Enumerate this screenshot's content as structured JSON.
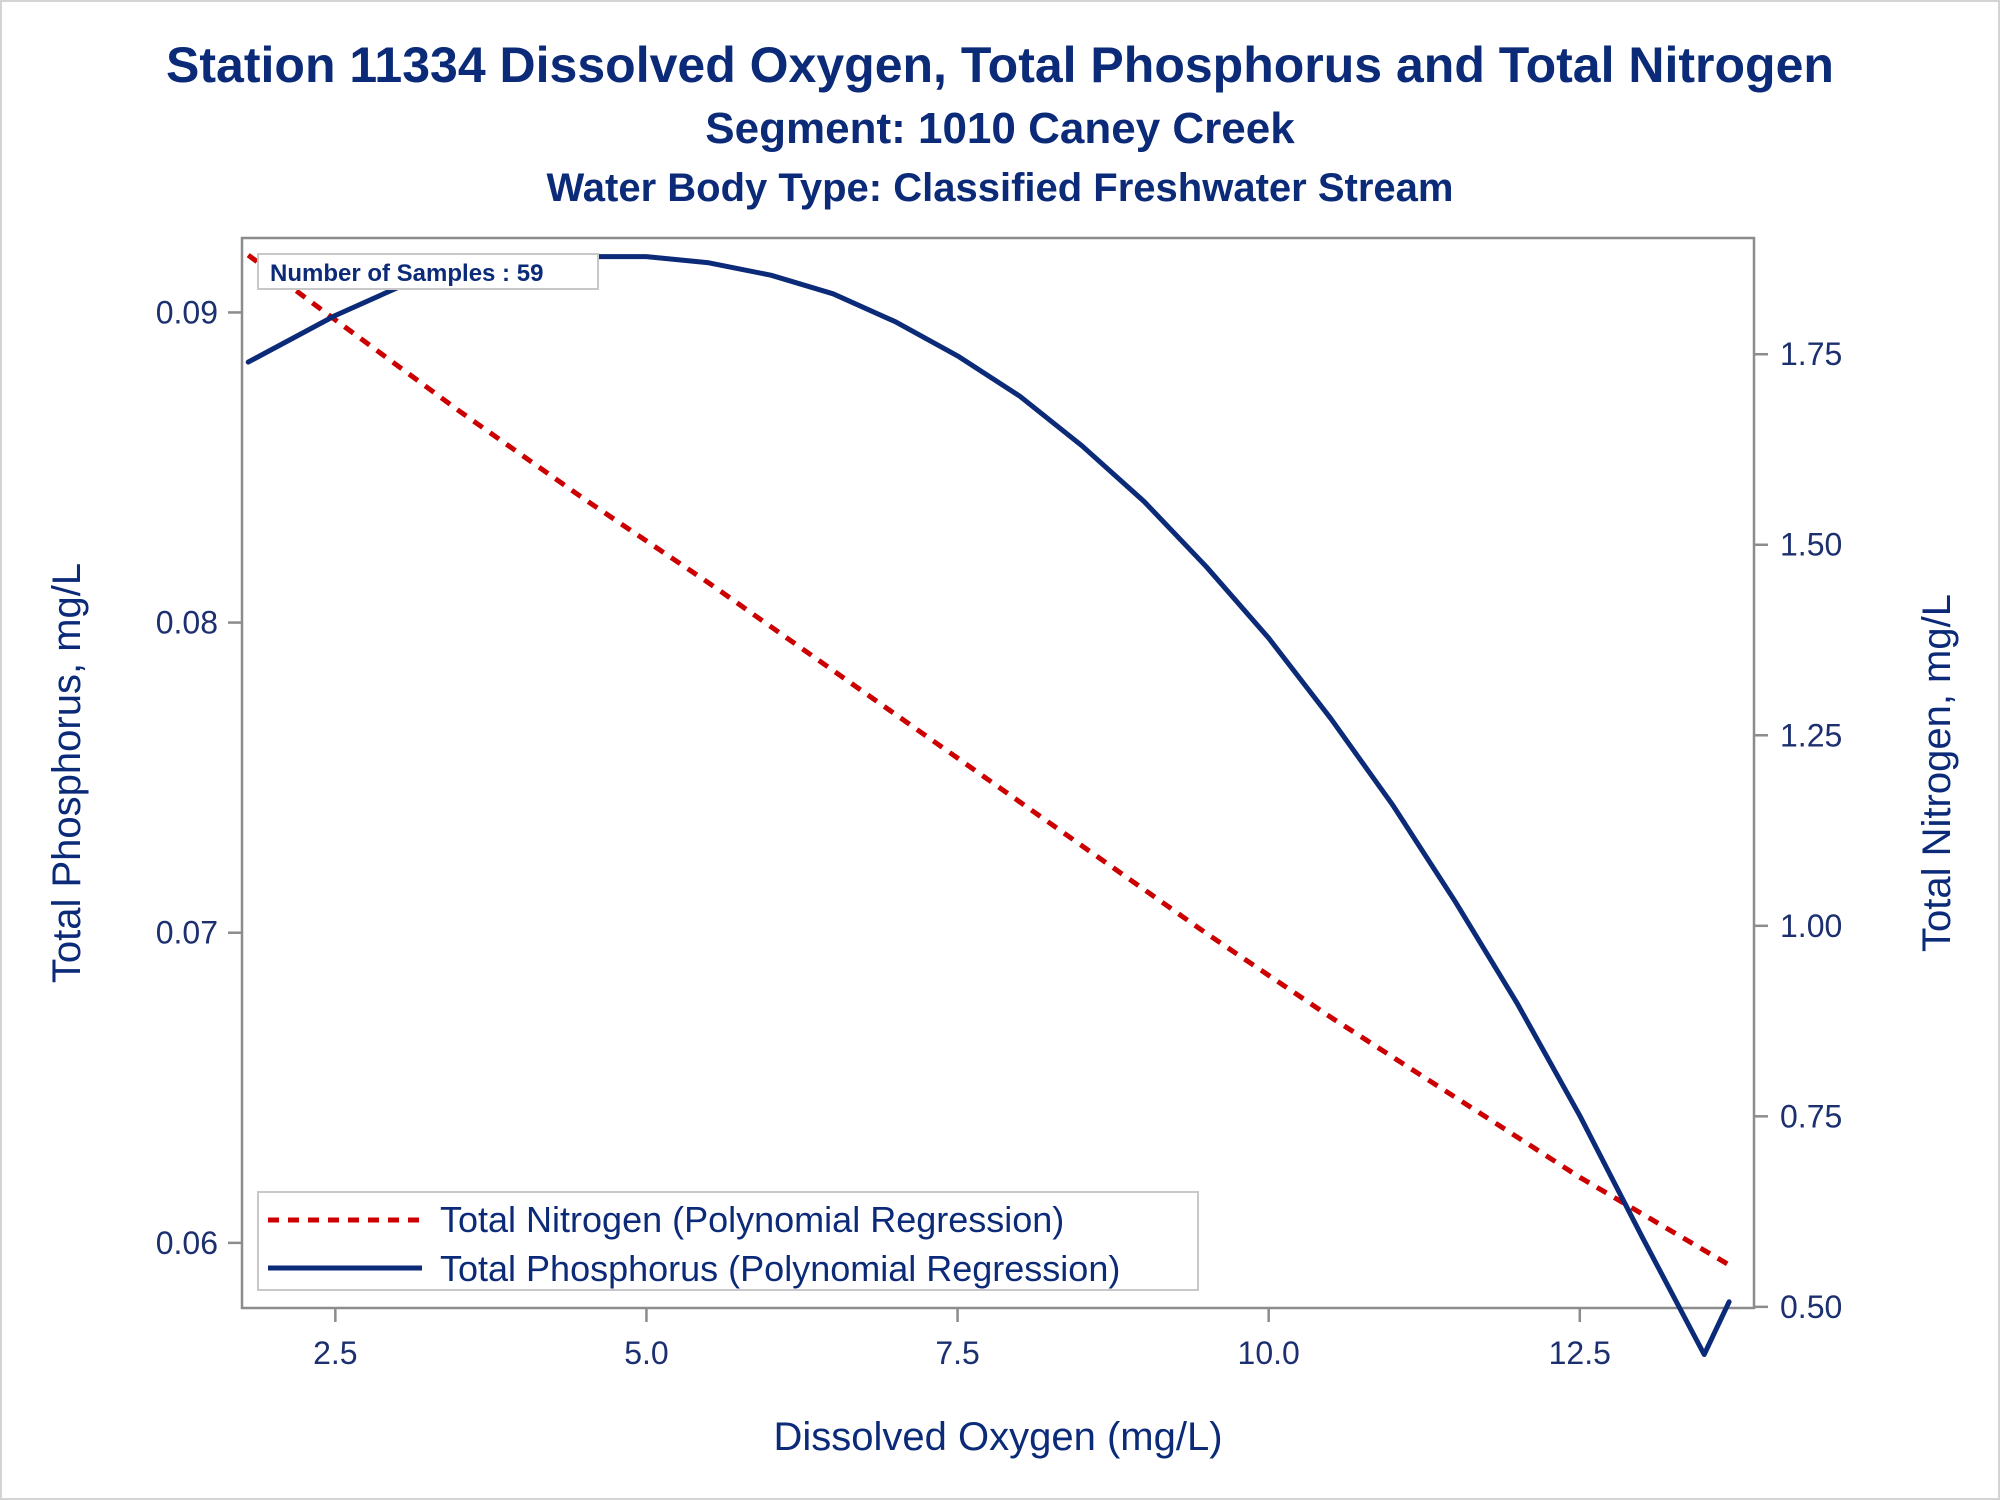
{
  "chart_data": {
    "type": "line",
    "title": "Station 11334  Dissolved Oxygen, Total Phosphorus and Total Nitrogen",
    "subtitle": "Segment: 1010  Caney Creek",
    "subtitle2": "Water Body Type: Classified Freshwater Stream",
    "xlabel": "Dissolved Oxygen (mg/L)",
    "ylabel_left": "Total Phosphorus, mg/L",
    "ylabel_right": "Total Nitrogen, mg/L",
    "xlim": [
      1.75,
      13.9
    ],
    "ylim_left": [
      0.0579,
      0.0924
    ],
    "ylim_right": [
      0.4985,
      1.9025
    ],
    "x_ticks": [
      "2.5",
      "5.0",
      "7.5",
      "10.0",
      "12.5"
    ],
    "y_left_ticks": [
      "0.06",
      "0.07",
      "0.08",
      "0.09"
    ],
    "y_right_ticks": [
      "0.50",
      "0.75",
      "1.00",
      "1.25",
      "1.50",
      "1.75"
    ],
    "annotation": "Number of Samples : 59",
    "legend_position": "bottom-left",
    "series": [
      {
        "name": "Total Nitrogen (Polynomial Regression)",
        "axis": "right",
        "style": "dashed",
        "color": "#cc0000",
        "x": [
          1.8,
          2.5,
          3.5,
          4.5,
          5.5,
          6.5,
          7.5,
          8.5,
          9.5,
          10.5,
          11.5,
          12.5,
          13.7
        ],
        "values": [
          1.88,
          1.795,
          1.675,
          1.56,
          1.45,
          1.335,
          1.22,
          1.105,
          0.99,
          0.88,
          0.775,
          0.67,
          0.555
        ]
      },
      {
        "name": "Total Phosphorus (Polynomial Regression)",
        "axis": "left",
        "style": "solid",
        "color": "#0b2a78",
        "x": [
          1.8,
          2.5,
          3.0,
          3.5,
          4.0,
          4.5,
          5.0,
          5.5,
          6.0,
          6.5,
          7.0,
          7.5,
          8.0,
          8.5,
          9.0,
          9.5,
          10.0,
          10.5,
          11.0,
          11.5,
          12.0,
          12.5,
          13.0,
          13.5,
          13.7
        ],
        "values": [
          0.0884,
          0.0899,
          0.0908,
          0.0914,
          0.0917,
          0.0918,
          0.0918,
          0.0916,
          0.0912,
          0.0906,
          0.0897,
          0.0886,
          0.0873,
          0.0857,
          0.0839,
          0.0818,
          0.0795,
          0.0769,
          0.0741,
          0.071,
          0.0677,
          0.0641,
          0.0602,
          0.0564,
          0.0581
        ]
      }
    ]
  }
}
